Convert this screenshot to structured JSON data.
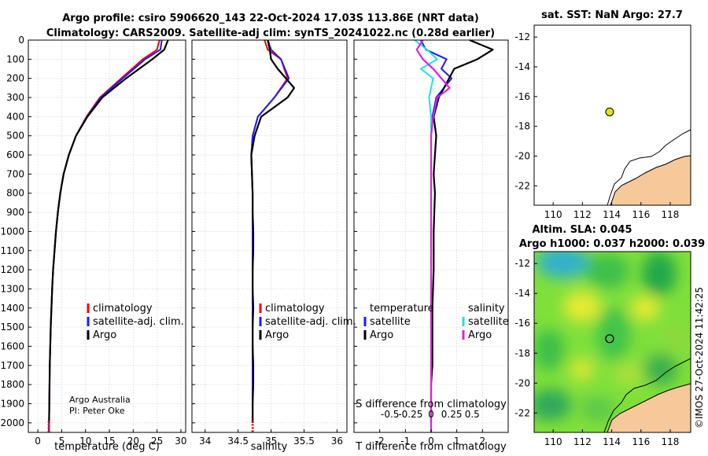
{
  "title_line1": "Argo profile: csiro 5906620_143 22-Oct-2024 17.03S 113.86E (NRT data)",
  "title_line2": "Climatology: CARS2009. Satellite-adj clim: synTS_20241022.nc (0.28d earlier)",
  "colors": {
    "climatology": "#ff0000",
    "satellite_adj": "#1a1aff",
    "argo": "#000000",
    "sal_satellite": "#20e0e0",
    "sal_argo": "#e020e0",
    "land": "#f6c89a",
    "marker": "#e0e020"
  },
  "depth_ticks": [
    "0",
    "100",
    "200",
    "300",
    "400",
    "500",
    "600",
    "700",
    "800",
    "900",
    "1000",
    "1100",
    "1200",
    "1300",
    "1400",
    "1500",
    "1600",
    "1700",
    "1800",
    "1900",
    "2000"
  ],
  "chart_data": [
    {
      "type": "line",
      "name": "temperature-profile",
      "xlabel": "temperature (deg C)",
      "ylabel": "depth",
      "xlim": [
        -2,
        31
      ],
      "ylim": [
        2050,
        0
      ],
      "xticks": [
        "0",
        "5",
        "10",
        "15",
        "20",
        "25",
        "30"
      ],
      "xtick_values": [
        0,
        5,
        10,
        15,
        20,
        25,
        30
      ],
      "legend": [
        "climatology",
        "satellite-adj. clim.",
        "Argo"
      ],
      "series": [
        {
          "name": "climatology",
          "color": "#ff0000",
          "x": [
            25.5,
            25.0,
            22.0,
            17.5,
            13.0,
            10.2,
            8.0,
            6.5,
            5.4,
            4.7,
            4.2,
            3.8,
            3.5,
            3.2,
            3.0,
            2.85,
            2.7,
            2.6,
            2.5,
            2.45,
            2.4,
            2.35,
            2.3
          ],
          "depth": [
            0,
            50,
            100,
            200,
            300,
            400,
            500,
            600,
            700,
            800,
            900,
            1000,
            1100,
            1200,
            1300,
            1400,
            1500,
            1600,
            1700,
            1800,
            1900,
            2000,
            2050
          ]
        },
        {
          "name": "satellite-adj. clim.",
          "color": "#1a1aff",
          "x": [
            26.0,
            25.7,
            22.5,
            17.8,
            13.2,
            10.3,
            8.0,
            6.5,
            5.4,
            4.7,
            4.2,
            3.8,
            3.5,
            3.2,
            3.0,
            2.85,
            2.7,
            2.6,
            2.5,
            2.45,
            2.4,
            2.35,
            2.3
          ],
          "depth": [
            0,
            50,
            100,
            200,
            300,
            400,
            500,
            600,
            700,
            800,
            900,
            1000,
            1100,
            1200,
            1300,
            1400,
            1500,
            1600,
            1700,
            1800,
            1900,
            2000,
            2050
          ]
        },
        {
          "name": "Argo",
          "color": "#000000",
          "x": [
            27.3,
            26.5,
            24.0,
            18.5,
            13.5,
            10.4,
            8.0,
            6.5,
            5.4,
            4.7,
            4.2,
            3.8,
            3.5,
            3.2,
            3.0,
            2.85,
            2.7,
            2.6,
            2.5,
            2.45,
            2.4,
            2.35
          ],
          "depth": [
            0,
            50,
            100,
            200,
            300,
            400,
            500,
            600,
            700,
            800,
            900,
            1000,
            1100,
            1200,
            1300,
            1400,
            1500,
            1600,
            1700,
            1800,
            1900,
            2000
          ]
        }
      ],
      "annotations": [
        "Argo Australia",
        "PI: Peter Oke"
      ]
    },
    {
      "type": "line",
      "name": "salinity-profile",
      "xlabel": "salinity",
      "xlim": [
        33.8,
        36.15
      ],
      "ylim": [
        2050,
        0
      ],
      "xticks": [
        "34",
        "34.5",
        "35",
        "35.5",
        "36"
      ],
      "xtick_values": [
        34,
        34.5,
        35,
        35.5,
        36
      ],
      "legend": [
        "climatology",
        "satellite-adj. clim.",
        "Argo"
      ],
      "series": [
        {
          "name": "climatology",
          "color": "#ff0000",
          "x": [
            34.9,
            34.95,
            35.15,
            35.25,
            35.05,
            34.8,
            34.72,
            34.7,
            34.71,
            34.72,
            34.72,
            34.72,
            34.72,
            34.72,
            34.72,
            34.72,
            34.72,
            34.72,
            34.72,
            34.72,
            34.72,
            34.72
          ],
          "depth": [
            0,
            50,
            100,
            200,
            300,
            400,
            500,
            600,
            700,
            800,
            900,
            1000,
            1100,
            1200,
            1300,
            1400,
            1500,
            1600,
            1700,
            1800,
            1900,
            2000
          ]
        },
        {
          "name": "satellite-adj. clim.",
          "color": "#1a1aff",
          "x": [
            34.95,
            35.0,
            35.15,
            35.27,
            35.05,
            34.8,
            34.72,
            34.7,
            34.71,
            34.72,
            34.72,
            34.72,
            34.72,
            34.72,
            34.72,
            34.72,
            34.72,
            34.72,
            34.72,
            34.72,
            34.72,
            34.72
          ],
          "depth": [
            0,
            50,
            100,
            200,
            300,
            400,
            500,
            600,
            700,
            800,
            900,
            1000,
            1100,
            1200,
            1300,
            1400,
            1500,
            1600,
            1700,
            1800,
            1900,
            2000
          ]
        },
        {
          "name": "Argo",
          "color": "#000000",
          "x": [
            34.95,
            34.98,
            35.0,
            35.1,
            35.35,
            35.25,
            34.85,
            34.75,
            34.7,
            34.71,
            34.72,
            34.72,
            34.73,
            34.73,
            34.72,
            34.72,
            34.73,
            34.72,
            34.72,
            34.73,
            34.73,
            34.72,
            34.72
          ],
          "depth": [
            0,
            50,
            100,
            150,
            250,
            300,
            400,
            500,
            600,
            700,
            800,
            900,
            1000,
            1100,
            1200,
            1300,
            1400,
            1500,
            1600,
            1700,
            1800,
            1900,
            2000
          ]
        }
      ]
    },
    {
      "type": "line",
      "name": "difference-profile",
      "xlabel": "T difference from climatology",
      "xlabel_top": "S difference from climatology",
      "xlim": [
        -3,
        3
      ],
      "ylim": [
        2050,
        0
      ],
      "xticks": [
        "-2",
        "-1",
        "0",
        "1",
        "2"
      ],
      "xtick_values": [
        -2,
        -1,
        0,
        1,
        2
      ],
      "s_ticks": [
        "-0.5",
        "-0.25",
        "0",
        "0.25",
        "0.5"
      ],
      "legend_temperature_title": "temperature",
      "legend_salinity_title": "salinity",
      "legend": [
        "satellite",
        "Argo",
        "satellite",
        "Argo"
      ],
      "series": [
        {
          "name": "temperature satellite",
          "color": "#1a1aff",
          "x": [
            -0.4,
            -0.2,
            0.6,
            0.4,
            0.8,
            0.2,
            0.05,
            0.0,
            0.0,
            0.0,
            0.0,
            0.0,
            0.0,
            0.0,
            0.0,
            0.0,
            0.0,
            0.0,
            0.0,
            0.0,
            0.0
          ],
          "depth": [
            0,
            50,
            100,
            150,
            200,
            300,
            400,
            500,
            600,
            800,
            1000,
            1200,
            1400,
            1500,
            1600,
            1700,
            1800,
            1900,
            1950,
            2000,
            2050
          ]
        },
        {
          "name": "temperature Argo",
          "color": "#000000",
          "x": [
            1.5,
            2.4,
            1.8,
            0.9,
            0.5,
            0.3,
            0.1,
            0.2,
            0.15,
            0.1,
            0.15,
            0.1,
            0.1,
            0.05,
            0.05,
            0.05,
            0.0,
            0.0,
            0.0
          ],
          "depth": [
            0,
            50,
            100,
            150,
            250,
            300,
            400,
            500,
            600,
            700,
            800,
            1000,
            1200,
            1400,
            1600,
            1700,
            1800,
            1900,
            2000
          ]
        },
        {
          "name": "salinity satellite",
          "color": "#20e0e0",
          "x": [
            -0.8,
            -0.2,
            0.3,
            -0.5,
            0.1,
            -0.1,
            0.0,
            0.0,
            0.0,
            0.0,
            0.0,
            0.0,
            0.0,
            0.0,
            0.0
          ],
          "depth": [
            0,
            50,
            100,
            150,
            200,
            300,
            400,
            500,
            700,
            900,
            1200,
            1500,
            1800,
            2000,
            2050
          ]
        },
        {
          "name": "salinity Argo",
          "color": "#e020e0",
          "x": [
            -0.4,
            -0.7,
            -0.4,
            0.1,
            0.9,
            0.3,
            0.1,
            0.0,
            0.0,
            0.0,
            0.0,
            0.0,
            0.0
          ],
          "depth": [
            0,
            50,
            100,
            150,
            250,
            300,
            400,
            500,
            800,
            1200,
            1600,
            2000,
            2050
          ]
        }
      ]
    },
    {
      "type": "scatter",
      "name": "sst-map",
      "title": "sat. SST: NaN Argo: 27.7",
      "xlim": [
        108.7,
        119.4
      ],
      "ylim": [
        -23.3,
        -11.2
      ],
      "xticks": [
        "110",
        "112",
        "114",
        "116",
        "118"
      ],
      "yticks": [
        "-12",
        "-14",
        "-16",
        "-18",
        "-20",
        "-22"
      ],
      "points": [
        {
          "lon": 113.86,
          "lat": -17.03
        }
      ]
    },
    {
      "type": "heatmap",
      "name": "sla-map",
      "title_line1": "Altim. SLA: 0.045",
      "title_line2": "Argo h1000: 0.037 h2000: 0.039",
      "xlim": [
        108.7,
        119.4
      ],
      "ylim": [
        -23.3,
        -11.2
      ],
      "xticks": [
        "110",
        "112",
        "114",
        "116",
        "118"
      ],
      "yticks": [
        "-12",
        "-14",
        "-16",
        "-18",
        "-20",
        "-22"
      ],
      "points": [
        {
          "lon": 113.86,
          "lat": -17.03
        }
      ]
    }
  ],
  "timestamp": "©IMOS 27-Oct-2024 11:42:25"
}
